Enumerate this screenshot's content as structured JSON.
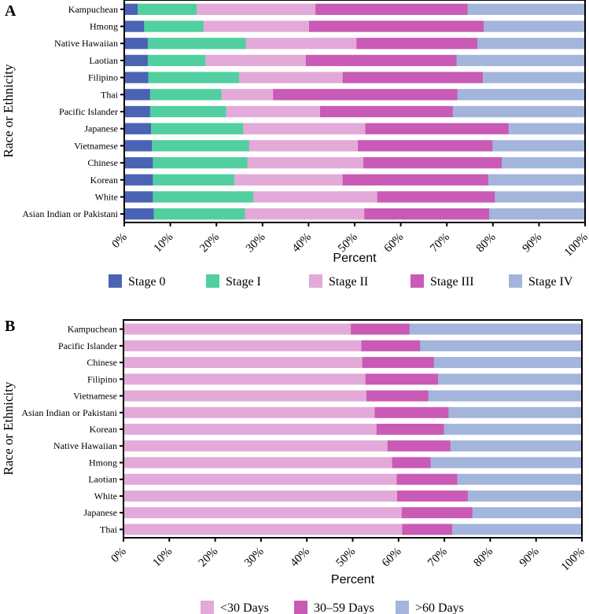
{
  "chart_data": [
    {
      "type": "bar",
      "orientation": "horizontal",
      "stacked": true,
      "panel_label": "A",
      "xlabel": "Percent",
      "ylabel": "Race or Ethnicity",
      "xlim": [
        0,
        100
      ],
      "xticks": [
        "0%",
        "10%",
        "20%",
        "30%",
        "40%",
        "50%",
        "60%",
        "70%",
        "80%",
        "90%",
        "100%"
      ],
      "legend_position": "bottom",
      "categories": [
        "Kampuchean",
        "Hmong",
        "Native Hawaiian",
        "Laotian",
        "Filipino",
        "Thai",
        "Pacific Islander",
        "Japanese",
        "Vietnamese",
        "Chinese",
        "Korean",
        "White",
        "Asian Indian or Pakistani"
      ],
      "series": [
        {
          "name": "Stage 0",
          "color": "#4a63b5",
          "values": [
            2.9,
            4.3,
            5.1,
            5.1,
            5.2,
            5.6,
            5.6,
            5.8,
            6.0,
            6.2,
            6.2,
            6.2,
            6.4
          ]
        },
        {
          "name": "Stage I",
          "color": "#52cfa0",
          "values": [
            12.8,
            12.9,
            21.3,
            12.5,
            19.7,
            15.5,
            16.5,
            20.0,
            21.1,
            20.5,
            17.7,
            21.8,
            19.8
          ]
        },
        {
          "name": "Stage II",
          "color": "#e3a9d8",
          "values": [
            25.8,
            22.9,
            24.0,
            21.8,
            22.5,
            11.2,
            20.4,
            26.5,
            23.6,
            25.2,
            23.5,
            26.9,
            25.9
          ]
        },
        {
          "name": "Stage III",
          "color": "#c95ab5",
          "values": [
            33.0,
            37.9,
            26.2,
            32.7,
            30.4,
            40.0,
            28.8,
            31.1,
            29.2,
            30.0,
            31.6,
            25.5,
            27.1
          ]
        },
        {
          "name": "Stage IV",
          "color": "#a4b5dc",
          "values": [
            25.5,
            22.0,
            23.4,
            27.9,
            22.2,
            27.7,
            28.7,
            16.6,
            20.1,
            18.1,
            21.0,
            19.6,
            20.8
          ]
        }
      ]
    },
    {
      "type": "bar",
      "orientation": "horizontal",
      "stacked": true,
      "panel_label": "B",
      "xlabel": "Percent",
      "ylabel": "Race or Ethnicity",
      "xlim": [
        0,
        100
      ],
      "xticks": [
        "0%",
        "10%",
        "20%",
        "30%",
        "40%",
        "50%",
        "60%",
        "70%",
        "80%",
        "90%",
        "100%"
      ],
      "legend_position": "bottom",
      "categories": [
        "Kampuchean",
        "Pacific Islander",
        "Chinese",
        "Filipino",
        "Vietnamese",
        "Asian Indian or Pakistani",
        "Korean",
        "Native Hawaiian",
        "Hmong",
        "Laotian",
        "White",
        "Japanese",
        "Thai"
      ],
      "series": [
        {
          "name": "<30 Days",
          "color": "#e3a9d8",
          "values": [
            49.6,
            51.9,
            52.1,
            52.8,
            53.0,
            54.8,
            55.2,
            57.6,
            58.6,
            59.6,
            59.7,
            60.7,
            60.8
          ]
        },
        {
          "name": "30–59 Days",
          "color": "#c95ab5",
          "values": [
            12.8,
            12.8,
            15.6,
            15.8,
            13.5,
            16.1,
            14.7,
            13.7,
            8.4,
            13.2,
            15.4,
            15.4,
            10.9
          ]
        },
        {
          "name": ">60 Days",
          "color": "#a4b5dc",
          "values": [
            37.6,
            35.3,
            32.3,
            31.4,
            33.5,
            29.1,
            30.1,
            28.7,
            33.0,
            27.2,
            24.9,
            23.9,
            28.3
          ]
        }
      ]
    }
  ]
}
